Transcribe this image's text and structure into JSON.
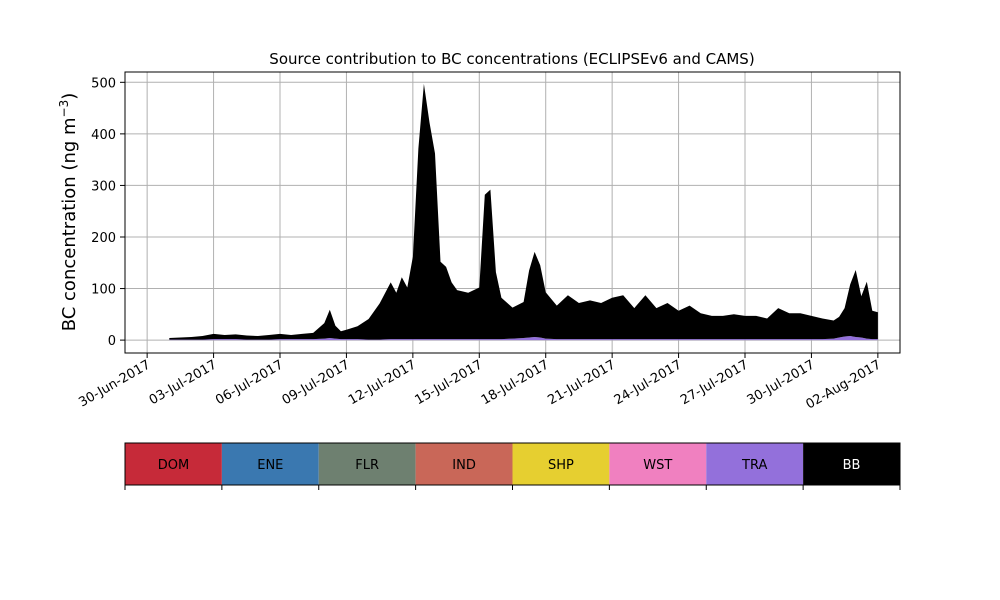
{
  "chart_data": {
    "type": "area",
    "stacked": true,
    "title": "Source contribution to BC concentrations (ECLIPSEv6 and CAMS)",
    "ylabel": "BC concentration (ng m",
    "ylabel_superscript": "−3",
    "ylabel_close": ")",
    "xlabel": "",
    "grid": true,
    "ylim": [
      -25,
      520
    ],
    "yticks": [
      0,
      100,
      200,
      300,
      400,
      500
    ],
    "xlim": [
      "2017-06-29",
      "2017-08-03"
    ],
    "xticks": [
      "30-Jun-2017",
      "03-Jul-2017",
      "06-Jul-2017",
      "09-Jul-2017",
      "12-Jul-2017",
      "15-Jul-2017",
      "18-Jul-2017",
      "21-Jul-2017",
      "24-Jul-2017",
      "27-Jul-2017",
      "30-Jul-2017",
      "02-Aug-2017"
    ],
    "xtick_dates": [
      "2017-06-30",
      "2017-07-03",
      "2017-07-06",
      "2017-07-09",
      "2017-07-12",
      "2017-07-15",
      "2017-07-18",
      "2017-07-21",
      "2017-07-24",
      "2017-07-27",
      "2017-07-30",
      "2017-08-02"
    ],
    "legend_placement": "below",
    "legend": [
      {
        "name": "DOM",
        "color": "#c62a39"
      },
      {
        "name": "ENE",
        "color": "#3a78b0"
      },
      {
        "name": "FLR",
        "color": "#6e8070"
      },
      {
        "name": "IND",
        "color": "#c96758"
      },
      {
        "name": "SHP",
        "color": "#e6cf30"
      },
      {
        "name": "WST",
        "color": "#f080c0"
      },
      {
        "name": "TRA",
        "color": "#9370db"
      },
      {
        "name": "BB",
        "color": "#000000"
      }
    ],
    "x": [
      "2017-07-01T00",
      "2017-07-01T12",
      "2017-07-02T00",
      "2017-07-02T12",
      "2017-07-03T00",
      "2017-07-03T12",
      "2017-07-04T00",
      "2017-07-04T12",
      "2017-07-05T00",
      "2017-07-05T12",
      "2017-07-06T00",
      "2017-07-06T12",
      "2017-07-07T00",
      "2017-07-07T12",
      "2017-07-08T00",
      "2017-07-08T06",
      "2017-07-08T12",
      "2017-07-08T18",
      "2017-07-09T00",
      "2017-07-09T12",
      "2017-07-10T00",
      "2017-07-10T12",
      "2017-07-11T00",
      "2017-07-11T06",
      "2017-07-11T12",
      "2017-07-11T18",
      "2017-07-12T00",
      "2017-07-12T06",
      "2017-07-12T12",
      "2017-07-12T18",
      "2017-07-13T00",
      "2017-07-13T06",
      "2017-07-13T12",
      "2017-07-13T18",
      "2017-07-14T00",
      "2017-07-14T12",
      "2017-07-15T00",
      "2017-07-15T06",
      "2017-07-15T12",
      "2017-07-15T18",
      "2017-07-16T00",
      "2017-07-16T12",
      "2017-07-17T00",
      "2017-07-17T06",
      "2017-07-17T12",
      "2017-07-17T18",
      "2017-07-18T00",
      "2017-07-18T12",
      "2017-07-19T00",
      "2017-07-19T12",
      "2017-07-20T00",
      "2017-07-20T12",
      "2017-07-21T00",
      "2017-07-21T12",
      "2017-07-22T00",
      "2017-07-22T12",
      "2017-07-23T00",
      "2017-07-23T12",
      "2017-07-24T00",
      "2017-07-24T12",
      "2017-07-25T00",
      "2017-07-25T12",
      "2017-07-26T00",
      "2017-07-26T12",
      "2017-07-27T00",
      "2017-07-27T12",
      "2017-07-28T00",
      "2017-07-28T12",
      "2017-07-29T00",
      "2017-07-29T12",
      "2017-07-30T00",
      "2017-07-30T12",
      "2017-07-31T00",
      "2017-07-31T06",
      "2017-07-31T12",
      "2017-07-31T18",
      "2017-08-01T00",
      "2017-08-01T06",
      "2017-08-01T12",
      "2017-08-01T18",
      "2017-08-02T00"
    ],
    "series": [
      {
        "name": "TRA",
        "values": [
          1,
          1,
          1,
          1,
          2,
          2,
          2,
          1,
          1,
          1,
          2,
          2,
          2,
          2,
          3,
          4,
          3,
          2,
          2,
          2,
          1,
          1,
          2,
          2,
          2,
          2,
          2,
          2,
          2,
          2,
          2,
          2,
          2,
          2,
          2,
          2,
          2,
          2,
          2,
          2,
          2,
          3,
          4,
          5,
          6,
          5,
          3,
          2,
          2,
          2,
          2,
          2,
          2,
          2,
          2,
          2,
          2,
          2,
          2,
          2,
          2,
          2,
          2,
          2,
          2,
          2,
          2,
          2,
          2,
          2,
          2,
          2,
          3,
          5,
          7,
          8,
          6,
          5,
          3,
          2,
          2
        ]
      },
      {
        "name": "BB",
        "values": [
          3,
          4,
          5,
          7,
          10,
          8,
          9,
          8,
          7,
          9,
          10,
          8,
          10,
          12,
          30,
          55,
          25,
          15,
          18,
          25,
          40,
          70,
          110,
          90,
          120,
          100,
          160,
          370,
          495,
          420,
          360,
          150,
          140,
          110,
          95,
          90,
          100,
          280,
          290,
          130,
          80,
          60,
          70,
          130,
          165,
          140,
          90,
          65,
          85,
          70,
          75,
          70,
          80,
          85,
          60,
          85,
          60,
          70,
          55,
          65,
          50,
          45,
          45,
          48,
          45,
          45,
          40,
          60,
          50,
          50,
          45,
          40,
          35,
          40,
          55,
          100,
          130,
          80,
          110,
          55,
          52
        ]
      }
    ]
  }
}
